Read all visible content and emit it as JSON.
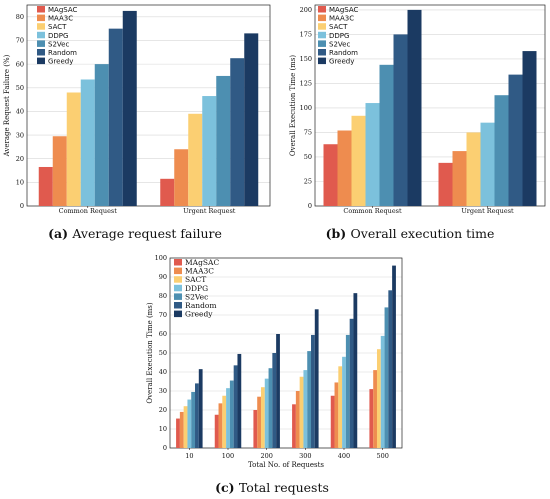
{
  "chart_data": [
    {
      "type": "bar",
      "panel_label": "(a)",
      "caption": "Average request failure",
      "ylabel": "Average Request Failure (%)",
      "xlabel": "",
      "categories": [
        "Common Request",
        "Urgent Request"
      ],
      "ylim": [
        0,
        85
      ],
      "yticks": [
        0,
        10,
        20,
        30,
        40,
        50,
        60,
        70,
        80
      ],
      "legend_position": "top-left",
      "series": [
        {
          "name": "MAgSAC",
          "values": [
            16.5,
            11.5
          ]
        },
        {
          "name": "MAA3C",
          "values": [
            29.5,
            24
          ]
        },
        {
          "name": "SACT",
          "values": [
            48,
            39
          ]
        },
        {
          "name": "DDPG",
          "values": [
            53.5,
            46.5
          ]
        },
        {
          "name": "S2Vec",
          "values": [
            60,
            55
          ]
        },
        {
          "name": "Random",
          "values": [
            75,
            62.5
          ]
        },
        {
          "name": "Greedy",
          "values": [
            82.5,
            73
          ]
        }
      ]
    },
    {
      "type": "bar",
      "panel_label": "(b)",
      "caption": "Overall execution time",
      "ylabel": "Overall Execution Time (ms)",
      "xlabel": "",
      "categories": [
        "Common Request",
        "Urgent Request"
      ],
      "ylim": [
        0,
        205
      ],
      "yticks": [
        0,
        25,
        50,
        75,
        100,
        125,
        150,
        175,
        200
      ],
      "legend_position": "top-left",
      "series": [
        {
          "name": "MAgSAC",
          "values": [
            63,
            44
          ]
        },
        {
          "name": "MAA3C",
          "values": [
            77,
            56
          ]
        },
        {
          "name": "SACT",
          "values": [
            92,
            75
          ]
        },
        {
          "name": "DDPG",
          "values": [
            105,
            85
          ]
        },
        {
          "name": "S2Vec",
          "values": [
            144,
            113
          ]
        },
        {
          "name": "Random",
          "values": [
            175,
            134
          ]
        },
        {
          "name": "Greedy",
          "values": [
            200,
            158
          ]
        }
      ]
    },
    {
      "type": "bar",
      "panel_label": "(c)",
      "caption": "Total requests",
      "ylabel": "Overall Execution Time (ms)",
      "xlabel": "Total No. of Requests",
      "categories": [
        "10",
        "100",
        "200",
        "300",
        "400",
        "500"
      ],
      "ylim": [
        0,
        100
      ],
      "yticks": [
        0,
        10,
        20,
        30,
        40,
        50,
        60,
        70,
        80,
        90,
        100
      ],
      "legend_position": "top-left",
      "series": [
        {
          "name": "MAgSAC",
          "values": [
            15.5,
            17.5,
            20,
            23,
            27.5,
            31
          ]
        },
        {
          "name": "MAA3C",
          "values": [
            19,
            23.5,
            27,
            30,
            34.5,
            41
          ]
        },
        {
          "name": "SACT",
          "values": [
            22,
            27.5,
            32,
            37.5,
            43,
            52
          ]
        },
        {
          "name": "DDPG",
          "values": [
            25.5,
            31.5,
            36.5,
            41,
            48,
            59
          ]
        },
        {
          "name": "S2Vec",
          "values": [
            29.5,
            35.5,
            42,
            51,
            59.5,
            74
          ]
        },
        {
          "name": "Random",
          "values": [
            34,
            43.5,
            50,
            59.5,
            68,
            83
          ]
        },
        {
          "name": "Greedy",
          "values": [
            41.5,
            49.5,
            60,
            73,
            81.5,
            96
          ]
        }
      ]
    }
  ],
  "colors": [
    "#e05a4e",
    "#ee8c4f",
    "#fbcf72",
    "#7cc1dc",
    "#4d8fb1",
    "#305a85",
    "#1b3a62"
  ]
}
